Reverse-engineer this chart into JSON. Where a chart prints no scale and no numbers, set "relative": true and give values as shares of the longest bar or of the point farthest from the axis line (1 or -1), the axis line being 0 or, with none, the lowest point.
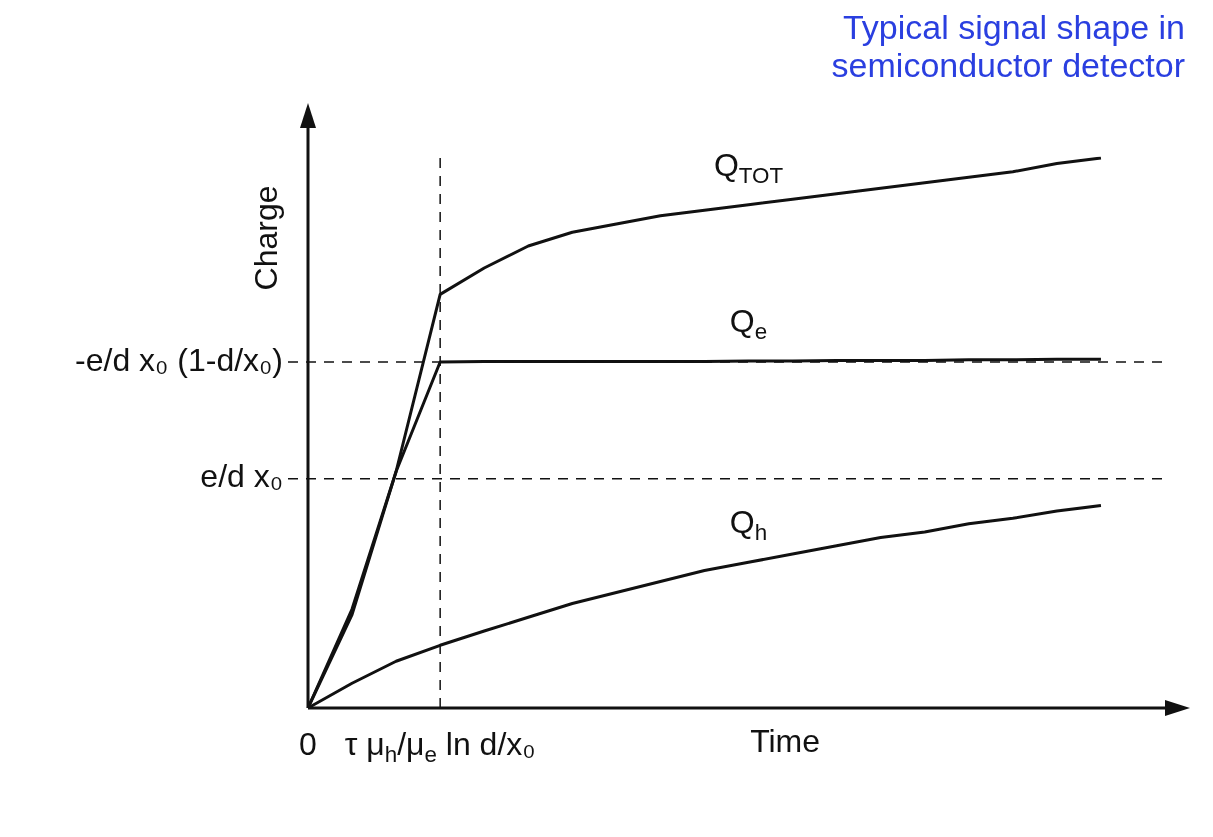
{
  "chart_data": {
    "type": "line",
    "title": "Typical signal shape in semiconductor detector",
    "xlabel": "Time",
    "ylabel": "Charge",
    "relative": true,
    "categories": [
      "0",
      null,
      null,
      "τ μ$_{h}$/μ$_{e}$ ln d/x₀",
      null,
      null,
      null,
      null,
      null,
      null,
      null,
      null,
      null,
      null,
      null,
      null,
      null,
      null,
      null,
      null
    ],
    "series": [
      {
        "name": "Q$_{TOT}$",
        "color": "#111111",
        "values": [
          0,
          0.18,
          0.43,
          0.752,
          0.8,
          0.84,
          0.865,
          0.88,
          0.895,
          0.905,
          0.915,
          0.925,
          0.935,
          0.945,
          0.955,
          0.965,
          0.975,
          0.99,
          1.0,
          null
        ]
      },
      {
        "name": "Q$_{e}$",
        "color": "#111111",
        "values": [
          0,
          0.17,
          0.43,
          0.629,
          0.63,
          0.63,
          0.63,
          0.63,
          0.63,
          0.63,
          0.631,
          0.631,
          0.632,
          0.632,
          0.632,
          0.633,
          0.633,
          0.634,
          0.634,
          null
        ]
      },
      {
        "name": "Q$_{h}$",
        "color": "#111111",
        "values": [
          0,
          0.045,
          0.085,
          0.114,
          0.14,
          0.165,
          0.19,
          0.21,
          0.23,
          0.25,
          0.265,
          0.28,
          0.295,
          0.31,
          0.32,
          0.335,
          0.345,
          0.358,
          0.368,
          null
        ]
      }
    ],
    "ref_lines": [
      {
        "axis": "y",
        "value": 0.629,
        "label": "-e/d x₀ (1-d/x₀)",
        "line_style": "dashed",
        "color": "#111111"
      },
      {
        "axis": "y",
        "value": 0.417,
        "label": "e/d x₀",
        "line_style": "dashed",
        "color": "#111111"
      },
      {
        "axis": "x",
        "value": "τ μ$_{h}$/μ$_{e}$ ln d/x₀",
        "label": null,
        "line_style": "dashed",
        "color": "#111111"
      }
    ],
    "legend": false,
    "marker": "none",
    "line_style": "solid"
  }
}
